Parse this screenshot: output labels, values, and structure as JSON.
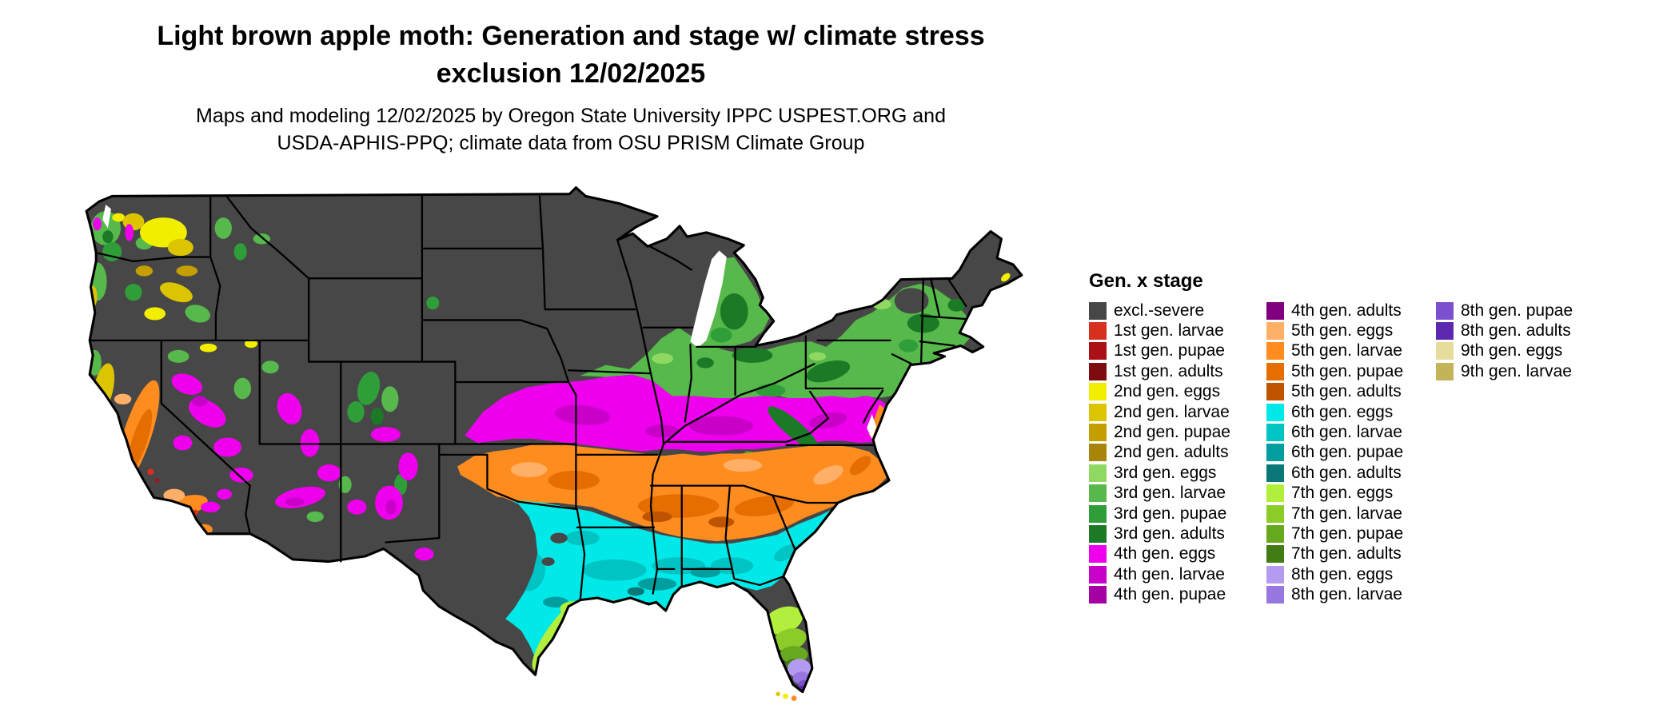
{
  "title": {
    "line1": "Light brown apple moth: Generation and stage w/ climate stress",
    "line2": "exclusion 12/02/2025"
  },
  "subtitle": {
    "line1": "Maps and modeling 12/02/2025 by Oregon State University IPPC USPEST.ORG and",
    "line2": "USDA-APHIS-PPQ; climate data from OSU PRISM Climate Group"
  },
  "map": {
    "region": "Contiguous United States",
    "type": "choropleth of insect generation and life stage with climate stress exclusion",
    "visible_pattern_north_to_south": [
      "excl.-severe: northern tier, Rocky Mountains, Sierra/Cascades, central and west Texas",
      "3rd generation greens: Great Lakes, Ohio Valley fringe, Northeast, western mountain patches",
      "4th gen. eggs magenta: broad band Kansas to Mid-Atlantic plus Great Basin, Utah, Arizona, New Mexico patches",
      "5th generation oranges: Oklahoma-Arkansas-Tennessee-Carolinas band, California Central Valley and south coast",
      "6th generation cyans: Gulf Coast states, Louisiana, east and south-central Texas, southeast coastal plain",
      "7th generation yellow-greens: south Texas coast, Louisiana coast fringe, north-central Florida",
      "8th generation purples: south Florida peninsula"
    ]
  },
  "legend": {
    "title": "Gen. x stage",
    "columns": [
      [
        {
          "key": "excl",
          "label": "excl.-severe",
          "color": "#474747"
        },
        {
          "key": "g1l",
          "label": "1st gen. larvae",
          "color": "#d7301f"
        },
        {
          "key": "g1p",
          "label": "1st gen. pupae",
          "color": "#aa1016"
        },
        {
          "key": "g1a",
          "label": "1st gen. adults",
          "color": "#7e0b0e"
        },
        {
          "key": "g2e",
          "label": "2nd gen. eggs",
          "color": "#f2ee00"
        },
        {
          "key": "g2l",
          "label": "2nd gen. larvae",
          "color": "#ddc400"
        },
        {
          "key": "g2p",
          "label": "2nd gen. pupae",
          "color": "#c3a000"
        },
        {
          "key": "g2a",
          "label": "2nd gen. adults",
          "color": "#a8850a"
        },
        {
          "key": "g3e",
          "label": "3rd gen. eggs",
          "color": "#8fd963"
        },
        {
          "key": "g3l",
          "label": "3rd gen. larvae",
          "color": "#57b84b"
        },
        {
          "key": "g3p",
          "label": "3rd gen. pupae",
          "color": "#2f9e38"
        },
        {
          "key": "g3a",
          "label": "3rd gen. adults",
          "color": "#1c7a26"
        },
        {
          "key": "g4e",
          "label": "4th gen. eggs",
          "color": "#ee00ee"
        },
        {
          "key": "g4l",
          "label": "4th gen. larvae",
          "color": "#c800c8"
        },
        {
          "key": "g4p",
          "label": "4th gen. pupae",
          "color": "#a400a4"
        }
      ],
      [
        {
          "key": "g4a",
          "label": "4th gen. adults",
          "color": "#800080"
        },
        {
          "key": "g5e",
          "label": "5th gen. eggs",
          "color": "#ffb066"
        },
        {
          "key": "g5l",
          "label": "5th gen. larvae",
          "color": "#ff8c1f"
        },
        {
          "key": "g5p",
          "label": "5th gen. pupae",
          "color": "#e66e00"
        },
        {
          "key": "g5a",
          "label": "5th gen. adults",
          "color": "#bf5400"
        },
        {
          "key": "g6e",
          "label": "6th gen. eggs",
          "color": "#00e8e8"
        },
        {
          "key": "g6l",
          "label": "6th gen. larvae",
          "color": "#00c4c4"
        },
        {
          "key": "g6p",
          "label": "6th gen. pupae",
          "color": "#009e9e"
        },
        {
          "key": "g6a",
          "label": "6th gen. adults",
          "color": "#0a7878"
        },
        {
          "key": "g7e",
          "label": "7th gen. eggs",
          "color": "#b2ee3c"
        },
        {
          "key": "g7l",
          "label": "7th gen. larvae",
          "color": "#8ccc28"
        },
        {
          "key": "g7p",
          "label": "7th gen. pupae",
          "color": "#66a81e"
        },
        {
          "key": "g7a",
          "label": "7th gen. adults",
          "color": "#417d14"
        },
        {
          "key": "g8e",
          "label": "8th gen. eggs",
          "color": "#b49bef"
        },
        {
          "key": "g8l",
          "label": "8th gen. larvae",
          "color": "#9678e0"
        }
      ],
      [
        {
          "key": "g8p",
          "label": "8th gen. pupae",
          "color": "#7b50cf"
        },
        {
          "key": "g8a",
          "label": "8th gen. adults",
          "color": "#5c28b0"
        },
        {
          "key": "g9e",
          "label": "9th gen. eggs",
          "color": "#e6dc9b"
        },
        {
          "key": "g9l",
          "label": "9th gen. larvae",
          "color": "#c3b45a"
        }
      ]
    ]
  }
}
